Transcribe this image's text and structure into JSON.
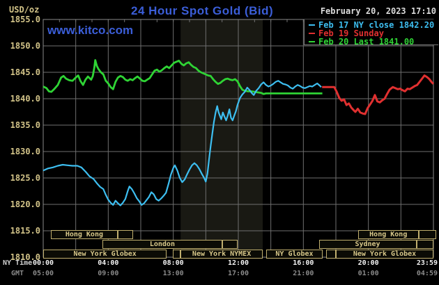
{
  "header": {
    "unit_label": "USD/oz",
    "title": "24 Hour Spot Gold (Bid)",
    "watermark": "www.kitco.com",
    "datetime": "February 20, 2023 17:10"
  },
  "axis_row_labels": {
    "ny": "NY Time",
    "gmt": "GMT"
  },
  "legend": {
    "items": [
      {
        "label": "Feb 17 NY close 1842.20",
        "color": "#3dbef0"
      },
      {
        "label": "Feb 19 Sunday",
        "color": "#e03030"
      },
      {
        "label": "Feb 20 Last 1841.00",
        "color": "#2fd435"
      }
    ]
  },
  "chart_data": {
    "type": "line",
    "title": "24 Hour Spot Gold (Bid)",
    "ylabel": "USD/oz",
    "grid": "on",
    "colors": {
      "grid": "#6f6f6f",
      "border": "#8a8a8a",
      "band": "#191913",
      "tick_text": "#d2c388"
    },
    "y_axis": {
      "min": 1810,
      "max": 1855,
      "tick_step": 5,
      "tick_labels": [
        "1855.0",
        "1850.0",
        "1845.0",
        "1840.0",
        "1835.0",
        "1830.0",
        "1825.0",
        "1820.0",
        "1815.0",
        "1810.0"
      ]
    },
    "x_axis": {
      "range_hours": [
        0,
        24
      ],
      "ticks": [
        {
          "t": 0,
          "ny": "00:00",
          "gmt": "05:00"
        },
        {
          "t": 4,
          "ny": "04:00",
          "gmt": "09:00"
        },
        {
          "t": 8,
          "ny": "08:00",
          "gmt": "13:00"
        },
        {
          "t": 12,
          "ny": "12:00",
          "gmt": "17:00"
        },
        {
          "t": 16,
          "ny": "16:00",
          "gmt": "21:00"
        },
        {
          "t": 20,
          "ny": "20:00",
          "gmt": "01:00"
        },
        {
          "t": 23.98,
          "ny": "23:59",
          "gmt": "04:59"
        }
      ]
    },
    "highlight_band": {
      "label": "New York NYMEX session",
      "t_start": 8.45,
      "t_end": 13.5,
      "color": "#191913"
    },
    "series": [
      {
        "name": "Feb 17 NY close 1842.20",
        "color": "#3dbef0",
        "points": [
          [
            0,
            1826.4
          ],
          [
            0.3,
            1826.8
          ],
          [
            0.6,
            1827.0
          ],
          [
            0.9,
            1827.3
          ],
          [
            1.2,
            1827.5
          ],
          [
            1.5,
            1827.4
          ],
          [
            1.8,
            1827.3
          ],
          [
            2.1,
            1827.3
          ],
          [
            2.35,
            1827.0
          ],
          [
            2.6,
            1826.2
          ],
          [
            2.85,
            1825.3
          ],
          [
            3.1,
            1824.8
          ],
          [
            3.3,
            1824.0
          ],
          [
            3.5,
            1823.3
          ],
          [
            3.7,
            1822.9
          ],
          [
            3.85,
            1821.8
          ],
          [
            4.0,
            1820.9
          ],
          [
            4.15,
            1820.3
          ],
          [
            4.3,
            1819.9
          ],
          [
            4.45,
            1820.7
          ],
          [
            4.6,
            1820.2
          ],
          [
            4.75,
            1819.8
          ],
          [
            4.9,
            1820.3
          ],
          [
            5.05,
            1821.0
          ],
          [
            5.2,
            1822.5
          ],
          [
            5.3,
            1823.4
          ],
          [
            5.45,
            1822.9
          ],
          [
            5.6,
            1822.1
          ],
          [
            5.75,
            1821.2
          ],
          [
            5.9,
            1820.6
          ],
          [
            6.05,
            1819.9
          ],
          [
            6.2,
            1820.2
          ],
          [
            6.35,
            1820.8
          ],
          [
            6.5,
            1821.4
          ],
          [
            6.65,
            1822.3
          ],
          [
            6.8,
            1821.9
          ],
          [
            6.95,
            1821.0
          ],
          [
            7.1,
            1820.7
          ],
          [
            7.25,
            1821.1
          ],
          [
            7.4,
            1821.6
          ],
          [
            7.55,
            1822.2
          ],
          [
            7.7,
            1823.8
          ],
          [
            7.85,
            1825.6
          ],
          [
            8.0,
            1826.9
          ],
          [
            8.1,
            1827.4
          ],
          [
            8.25,
            1826.4
          ],
          [
            8.4,
            1825.0
          ],
          [
            8.55,
            1824.2
          ],
          [
            8.7,
            1824.7
          ],
          [
            8.85,
            1825.7
          ],
          [
            9.0,
            1826.6
          ],
          [
            9.15,
            1827.4
          ],
          [
            9.3,
            1827.8
          ],
          [
            9.45,
            1827.4
          ],
          [
            9.6,
            1826.7
          ],
          [
            9.75,
            1825.8
          ],
          [
            9.9,
            1825.0
          ],
          [
            10.0,
            1824.3
          ],
          [
            10.1,
            1825.8
          ],
          [
            10.2,
            1828.5
          ],
          [
            10.3,
            1831.0
          ],
          [
            10.4,
            1833.4
          ],
          [
            10.5,
            1835.6
          ],
          [
            10.6,
            1837.3
          ],
          [
            10.7,
            1838.6
          ],
          [
            10.78,
            1837.5
          ],
          [
            10.85,
            1836.9
          ],
          [
            10.95,
            1836.1
          ],
          [
            11.05,
            1837.4
          ],
          [
            11.15,
            1836.6
          ],
          [
            11.25,
            1835.9
          ],
          [
            11.35,
            1836.8
          ],
          [
            11.45,
            1838.0
          ],
          [
            11.55,
            1836.4
          ],
          [
            11.65,
            1835.9
          ],
          [
            11.75,
            1836.8
          ],
          [
            11.85,
            1837.6
          ],
          [
            11.95,
            1838.8
          ],
          [
            12.1,
            1840.1
          ],
          [
            12.25,
            1840.8
          ],
          [
            12.4,
            1841.3
          ],
          [
            12.55,
            1842.1
          ],
          [
            12.7,
            1841.6
          ],
          [
            12.85,
            1841.0
          ],
          [
            12.95,
            1840.7
          ],
          [
            13.1,
            1841.5
          ],
          [
            13.25,
            1842.0
          ],
          [
            13.4,
            1842.7
          ],
          [
            13.55,
            1843.1
          ],
          [
            13.7,
            1842.6
          ],
          [
            13.85,
            1842.3
          ],
          [
            14.0,
            1842.5
          ],
          [
            14.15,
            1842.8
          ],
          [
            14.3,
            1843.2
          ],
          [
            14.45,
            1843.4
          ],
          [
            14.6,
            1843.1
          ],
          [
            14.75,
            1842.8
          ],
          [
            14.9,
            1842.7
          ],
          [
            15.05,
            1842.5
          ],
          [
            15.2,
            1842.1
          ],
          [
            15.35,
            1841.9
          ],
          [
            15.5,
            1842.3
          ],
          [
            15.65,
            1842.6
          ],
          [
            15.8,
            1842.4
          ],
          [
            15.95,
            1842.1
          ],
          [
            16.1,
            1842.0
          ],
          [
            16.25,
            1842.2
          ],
          [
            16.4,
            1842.4
          ],
          [
            16.55,
            1842.3
          ],
          [
            16.7,
            1842.6
          ],
          [
            16.85,
            1842.9
          ],
          [
            17.0,
            1842.5
          ],
          [
            17.1,
            1842.2
          ]
        ]
      },
      {
        "name": "Feb 19 Sunday",
        "color": "#e03030",
        "points": [
          [
            17.15,
            1842.2
          ],
          [
            17.9,
            1842.2
          ],
          [
            18.05,
            1841.3
          ],
          [
            18.2,
            1840.2
          ],
          [
            18.35,
            1839.6
          ],
          [
            18.5,
            1839.9
          ],
          [
            18.65,
            1838.8
          ],
          [
            18.8,
            1839.1
          ],
          [
            18.95,
            1838.3
          ],
          [
            19.1,
            1837.8
          ],
          [
            19.2,
            1837.5
          ],
          [
            19.35,
            1838.1
          ],
          [
            19.5,
            1837.4
          ],
          [
            19.65,
            1837.2
          ],
          [
            19.8,
            1837.1
          ],
          [
            19.95,
            1838.2
          ],
          [
            20.1,
            1838.9
          ],
          [
            20.25,
            1839.6
          ],
          [
            20.4,
            1840.7
          ],
          [
            20.55,
            1839.5
          ],
          [
            20.7,
            1839.3
          ],
          [
            20.85,
            1839.7
          ],
          [
            21.0,
            1840.0
          ],
          [
            21.15,
            1840.9
          ],
          [
            21.3,
            1841.7
          ],
          [
            21.5,
            1842.2
          ],
          [
            21.65,
            1842.0
          ],
          [
            21.8,
            1841.8
          ],
          [
            21.95,
            1841.9
          ],
          [
            22.1,
            1841.6
          ],
          [
            22.25,
            1841.4
          ],
          [
            22.4,
            1841.9
          ],
          [
            22.55,
            1841.8
          ],
          [
            22.7,
            1842.1
          ],
          [
            22.85,
            1842.4
          ],
          [
            23.0,
            1842.6
          ],
          [
            23.15,
            1843.2
          ],
          [
            23.3,
            1843.8
          ],
          [
            23.45,
            1844.4
          ],
          [
            23.6,
            1844.1
          ],
          [
            23.75,
            1843.7
          ],
          [
            23.9,
            1843.1
          ],
          [
            24.0,
            1842.8
          ]
        ]
      },
      {
        "name": "Feb 20 Last 1841.00",
        "color": "#2fd435",
        "points": [
          [
            0,
            1842.3
          ],
          [
            0.2,
            1842.0
          ],
          [
            0.35,
            1841.4
          ],
          [
            0.5,
            1841.3
          ],
          [
            0.7,
            1841.9
          ],
          [
            0.9,
            1842.6
          ],
          [
            1.1,
            1844.0
          ],
          [
            1.25,
            1844.3
          ],
          [
            1.4,
            1843.8
          ],
          [
            1.6,
            1843.5
          ],
          [
            1.8,
            1843.4
          ],
          [
            2.0,
            1844.0
          ],
          [
            2.15,
            1844.4
          ],
          [
            2.3,
            1843.3
          ],
          [
            2.45,
            1842.6
          ],
          [
            2.6,
            1843.6
          ],
          [
            2.75,
            1844.2
          ],
          [
            2.95,
            1843.6
          ],
          [
            3.05,
            1844.3
          ],
          [
            3.15,
            1846.0
          ],
          [
            3.2,
            1847.3
          ],
          [
            3.3,
            1846.2
          ],
          [
            3.4,
            1845.6
          ],
          [
            3.55,
            1845.0
          ],
          [
            3.7,
            1844.6
          ],
          [
            3.85,
            1843.4
          ],
          [
            4.0,
            1842.9
          ],
          [
            4.15,
            1842.2
          ],
          [
            4.3,
            1841.8
          ],
          [
            4.45,
            1843.2
          ],
          [
            4.6,
            1844.0
          ],
          [
            4.75,
            1844.3
          ],
          [
            4.9,
            1844.1
          ],
          [
            5.05,
            1843.6
          ],
          [
            5.2,
            1843.4
          ],
          [
            5.35,
            1843.7
          ],
          [
            5.5,
            1843.5
          ],
          [
            5.65,
            1843.9
          ],
          [
            5.8,
            1844.2
          ],
          [
            5.95,
            1843.8
          ],
          [
            6.1,
            1843.4
          ],
          [
            6.25,
            1843.3
          ],
          [
            6.4,
            1843.6
          ],
          [
            6.55,
            1843.9
          ],
          [
            6.7,
            1844.6
          ],
          [
            6.85,
            1845.3
          ],
          [
            7.0,
            1845.5
          ],
          [
            7.15,
            1845.1
          ],
          [
            7.3,
            1845.4
          ],
          [
            7.45,
            1845.8
          ],
          [
            7.6,
            1846.1
          ],
          [
            7.75,
            1845.8
          ],
          [
            7.9,
            1846.3
          ],
          [
            8.05,
            1846.8
          ],
          [
            8.2,
            1847.0
          ],
          [
            8.35,
            1847.2
          ],
          [
            8.5,
            1846.6
          ],
          [
            8.65,
            1846.3
          ],
          [
            8.8,
            1846.7
          ],
          [
            8.95,
            1846.9
          ],
          [
            9.1,
            1846.4
          ],
          [
            9.25,
            1846.0
          ],
          [
            9.4,
            1845.8
          ],
          [
            9.55,
            1845.3
          ],
          [
            9.7,
            1845.0
          ],
          [
            9.85,
            1844.8
          ],
          [
            10.0,
            1844.6
          ],
          [
            10.15,
            1844.4
          ],
          [
            10.3,
            1844.3
          ],
          [
            10.45,
            1843.7
          ],
          [
            10.6,
            1843.2
          ],
          [
            10.75,
            1842.8
          ],
          [
            10.9,
            1843.0
          ],
          [
            11.05,
            1843.4
          ],
          [
            11.2,
            1843.7
          ],
          [
            11.35,
            1843.8
          ],
          [
            11.5,
            1843.6
          ],
          [
            11.65,
            1843.5
          ],
          [
            11.8,
            1843.7
          ],
          [
            11.95,
            1843.3
          ],
          [
            12.1,
            1842.4
          ],
          [
            12.25,
            1841.7
          ],
          [
            12.4,
            1841.5
          ],
          [
            12.6,
            1841.4
          ],
          [
            12.8,
            1841.4
          ],
          [
            13.0,
            1841.3
          ],
          [
            13.2,
            1841.2
          ],
          [
            13.4,
            1841.1
          ],
          [
            13.55,
            1840.9
          ],
          [
            13.7,
            1841.0
          ],
          [
            14.5,
            1841.0
          ],
          [
            15.5,
            1841.0
          ],
          [
            16.5,
            1841.0
          ],
          [
            17.17,
            1841.0
          ]
        ]
      }
    ]
  },
  "sessions": {
    "rows": [
      {
        "segments": [
          {
            "t0": 0.45,
            "t1": 4.6,
            "label": "Hong Kong"
          },
          {
            "t0": 4.6,
            "t1": 5.55,
            "label": ""
          },
          {
            "t0": 19.35,
            "t1": 23.1,
            "label": "Hong Kong"
          },
          {
            "t0": 23.1,
            "t1": 24.15,
            "label": ""
          }
        ]
      },
      {
        "segments": [
          {
            "t0": 3.65,
            "t1": 11.0,
            "label": "London"
          },
          {
            "t0": 11.0,
            "t1": 11.95,
            "label": ""
          },
          {
            "t0": 16.95,
            "t1": 22.95,
            "label": "Sydney"
          },
          {
            "t0": 22.95,
            "t1": 24.0,
            "label": ""
          }
        ]
      },
      {
        "segments": [
          {
            "t0": 0.0,
            "t1": 7.6,
            "label": "New York Globex"
          },
          {
            "t0": 7.95,
            "t1": 8.45,
            "label": ""
          },
          {
            "t0": 8.45,
            "t1": 13.5,
            "label": "New York NYMEX"
          },
          {
            "t0": 13.7,
            "t1": 17.2,
            "label": "NY Globex"
          },
          {
            "t0": 17.4,
            "t1": 18.0,
            "label": ""
          },
          {
            "t0": 18.0,
            "t1": 24.0,
            "label": "New York Globex"
          }
        ]
      }
    ]
  }
}
